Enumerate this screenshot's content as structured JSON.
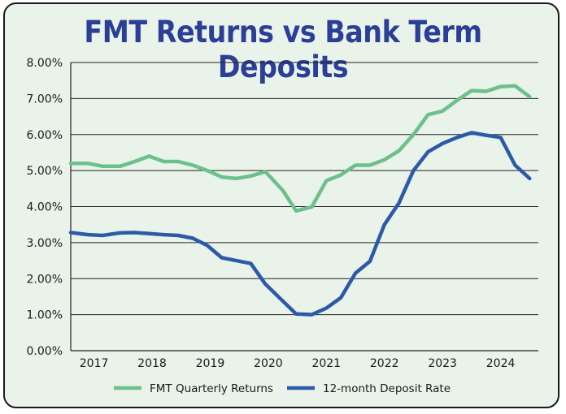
{
  "chart_data": {
    "type": "line",
    "title": "FMT Returns vs Bank Term Deposits",
    "xlabel": "",
    "ylabel": "",
    "ylim": [
      0,
      8
    ],
    "xlim": [
      2016.6,
      2024.65
    ],
    "y_ticks": [
      "0.00%",
      "1.00%",
      "2.00%",
      "3.00%",
      "4.00%",
      "5.00%",
      "6.00%",
      "7.00%",
      "8.00%"
    ],
    "x_ticks": [
      "2017",
      "2018",
      "2019",
      "2020",
      "2021",
      "2022",
      "2023",
      "2024"
    ],
    "grid": "horizontal",
    "legend_position": "bottom",
    "series": [
      {
        "name": "FMT Quarterly Returns",
        "color": "#6cc08c",
        "x": [
          2016.6,
          2016.9,
          2017.15,
          2017.45,
          2017.7,
          2017.95,
          2018.2,
          2018.45,
          2018.7,
          2018.95,
          2019.2,
          2019.45,
          2019.7,
          2019.95,
          2020.25,
          2020.48,
          2020.75,
          2021.0,
          2021.25,
          2021.5,
          2021.75,
          2022.0,
          2022.25,
          2022.5,
          2022.75,
          2023.0,
          2023.25,
          2023.5,
          2023.75,
          2024.0,
          2024.25,
          2024.5
        ],
        "values": [
          5.2,
          5.2,
          5.12,
          5.12,
          5.25,
          5.4,
          5.25,
          5.25,
          5.15,
          5.0,
          4.82,
          4.78,
          4.85,
          4.97,
          4.45,
          3.88,
          3.99,
          4.72,
          4.88,
          5.15,
          5.15,
          5.3,
          5.55,
          6.0,
          6.55,
          6.65,
          6.95,
          7.22,
          7.2,
          7.33,
          7.35,
          7.05
        ]
      },
      {
        "name": "12-month Deposit Rate",
        "color": "#2c5aa9",
        "x": [
          2016.6,
          2016.9,
          2017.15,
          2017.45,
          2017.7,
          2017.95,
          2018.2,
          2018.45,
          2018.7,
          2018.95,
          2019.2,
          2019.45,
          2019.7,
          2019.95,
          2020.25,
          2020.48,
          2020.75,
          2021.0,
          2021.25,
          2021.5,
          2021.75,
          2022.0,
          2022.25,
          2022.5,
          2022.75,
          2023.0,
          2023.25,
          2023.5,
          2023.75,
          2024.0,
          2024.25,
          2024.5
        ],
        "values": [
          3.28,
          3.22,
          3.2,
          3.27,
          3.28,
          3.25,
          3.22,
          3.2,
          3.12,
          2.92,
          2.58,
          2.5,
          2.42,
          1.85,
          1.38,
          1.02,
          1.0,
          1.18,
          1.47,
          2.15,
          2.48,
          3.5,
          4.1,
          5.0,
          5.52,
          5.75,
          5.92,
          6.05,
          5.98,
          5.92,
          5.15,
          4.78
        ]
      }
    ]
  }
}
